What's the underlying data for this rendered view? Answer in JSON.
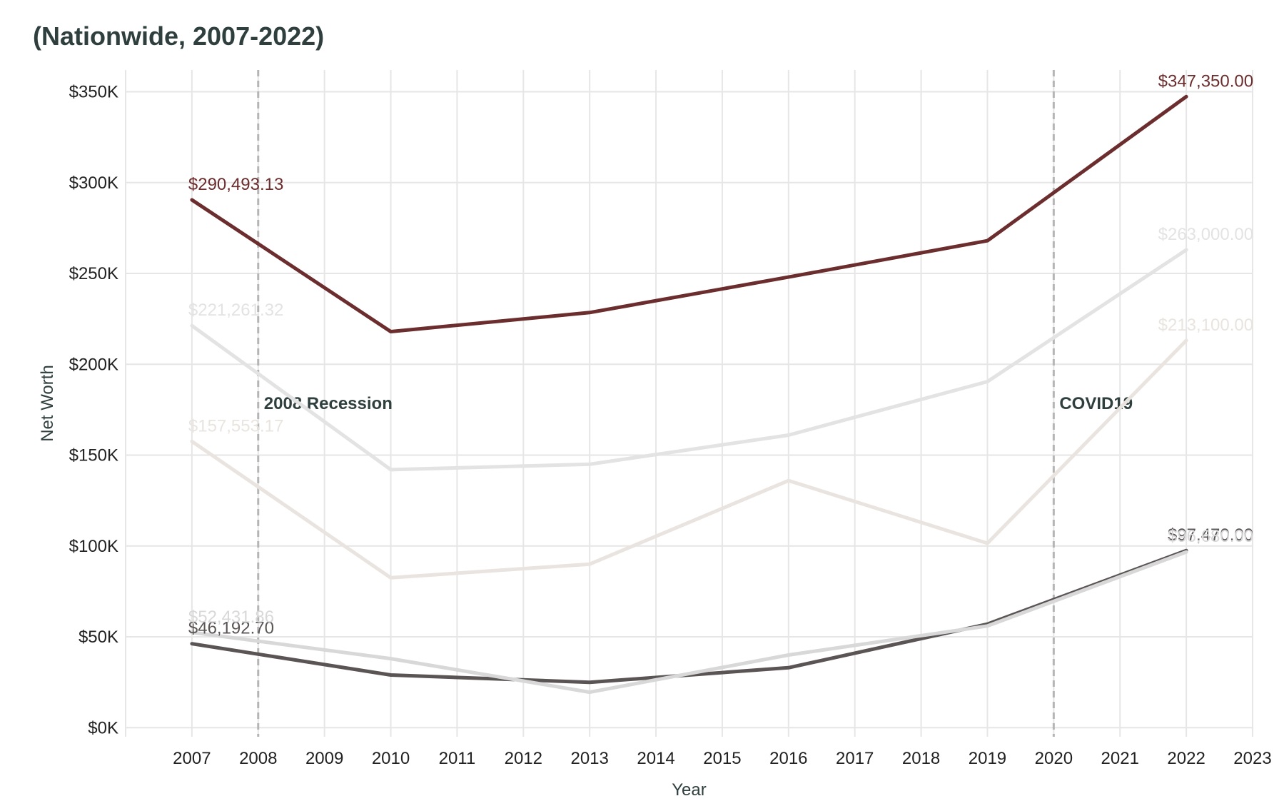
{
  "chart_data": {
    "type": "line",
    "title": "(Nationwide, 2007-2022)",
    "xlabel": "Year",
    "ylabel": "Net Worth",
    "xlim": [
      2006,
      2023
    ],
    "ylim": [
      -5000,
      362000
    ],
    "x_ticks": [
      2007,
      2008,
      2009,
      2010,
      2011,
      2012,
      2013,
      2014,
      2015,
      2016,
      2017,
      2018,
      2019,
      2020,
      2021,
      2022,
      2023
    ],
    "y_ticks": [
      0,
      50000,
      100000,
      150000,
      200000,
      250000,
      300000,
      350000
    ],
    "y_tick_labels": [
      "$0K",
      "$50K",
      "$100K",
      "$150K",
      "$200K",
      "$250K",
      "$300K",
      "$350K"
    ],
    "grid": true,
    "legend": "none",
    "events": [
      {
        "x": 2008,
        "label": "2008 Recession"
      },
      {
        "x": 2020,
        "label": "COVID19"
      }
    ],
    "series": [
      {
        "color": "#5a5454",
        "start_label": "$46,192.70",
        "end_label": "$97,470.00",
        "x": [
          2007,
          2010,
          2013,
          2016,
          2019,
          2022
        ],
        "values": [
          46192.7,
          29000,
          25000,
          33000,
          57000,
          97470
        ]
      },
      {
        "color": "#d8d8d8",
        "start_label": "$52,431.86",
        "end_label": "$96,680.00",
        "x": [
          2007,
          2010,
          2013,
          2016,
          2019,
          2022
        ],
        "values": [
          52431.86,
          38000,
          19500,
          40000,
          56000,
          96680
        ]
      },
      {
        "color": "#e9e4df",
        "start_label": "$157,553.17",
        "end_label": "$213,100.00",
        "x": [
          2007,
          2010,
          2013,
          2016,
          2019,
          2022
        ],
        "values": [
          157553.17,
          82500,
          90000,
          136000,
          101500,
          213100
        ]
      },
      {
        "color": "#e3e3e3",
        "start_label": "$221,261.32",
        "end_label": "$263,000.00",
        "x": [
          2007,
          2010,
          2013,
          2016,
          2019,
          2022
        ],
        "values": [
          221261.32,
          142000,
          145000,
          161000,
          190500,
          263000
        ]
      },
      {
        "color": "#6b2d2d",
        "start_label": "$290,493.13",
        "end_label": "$347,350.00",
        "x": [
          2007,
          2010,
          2013,
          2016,
          2019,
          2022
        ],
        "values": [
          290493.13,
          218000,
          228500,
          248000,
          268000,
          347350
        ]
      }
    ]
  }
}
